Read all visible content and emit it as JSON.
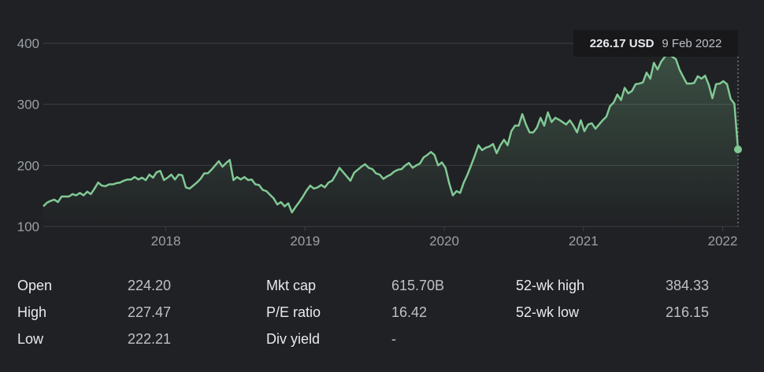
{
  "chart_data": {
    "type": "area",
    "title": "",
    "xlabel": "",
    "ylabel": "",
    "start_year": 2017.12,
    "end_year": 2022.11,
    "ylim": [
      100,
      400
    ],
    "yticks": [
      100,
      200,
      300,
      400
    ],
    "xticks": [
      2018,
      2019,
      2020,
      2021,
      2022
    ],
    "grid": true,
    "line_color": "#81c995",
    "values": [
      133,
      139,
      142,
      144,
      140,
      149,
      149,
      149,
      153,
      151,
      155,
      151,
      157,
      153,
      162,
      172,
      167,
      166,
      169,
      169,
      171,
      172,
      175,
      177,
      177,
      181,
      177,
      180,
      176,
      185,
      180,
      189,
      191,
      176,
      180,
      185,
      177,
      185,
      184,
      164,
      162,
      167,
      172,
      178,
      187,
      187,
      193,
      200,
      207,
      198,
      204,
      209,
      176,
      181,
      177,
      181,
      176,
      177,
      169,
      168,
      160,
      158,
      152,
      146,
      136,
      140,
      133,
      138,
      123,
      132,
      140,
      149,
      159,
      167,
      162,
      164,
      168,
      164,
      172,
      175,
      185,
      196,
      189,
      182,
      175,
      188,
      193,
      198,
      202,
      196,
      194,
      187,
      185,
      178,
      182,
      185,
      190,
      193,
      194,
      200,
      204,
      196,
      200,
      203,
      213,
      217,
      222,
      217,
      200,
      205,
      196,
      171,
      151,
      158,
      155,
      172,
      185,
      200,
      216,
      233,
      225,
      229,
      231,
      235,
      220,
      233,
      242,
      233,
      256,
      265,
      265,
      284,
      267,
      254,
      254,
      262,
      278,
      265,
      287,
      271,
      278,
      275,
      271,
      267,
      274,
      265,
      254,
      274,
      256,
      267,
      269,
      260,
      267,
      274,
      280,
      297,
      303,
      316,
      307,
      327,
      318,
      322,
      333,
      334,
      336,
      352,
      342,
      368,
      357,
      370,
      378,
      384,
      378,
      374,
      357,
      345,
      334,
      334,
      335,
      346,
      342,
      347,
      332,
      310,
      333,
      334,
      338,
      333,
      309,
      301,
      226.17
    ],
    "tooltip": {
      "price": "226.17 USD",
      "date": "9 Feb 2022"
    }
  },
  "stats": [
    {
      "label": "Open",
      "value": "224.20"
    },
    {
      "label": "High",
      "value": "227.47"
    },
    {
      "label": "Low",
      "value": "222.21"
    },
    {
      "label": "Mkt cap",
      "value": "615.70B"
    },
    {
      "label": "P/E ratio",
      "value": "16.42"
    },
    {
      "label": "Div yield",
      "value": "-"
    },
    {
      "label": "52-wk high",
      "value": "384.33"
    },
    {
      "label": "52-wk low",
      "value": "216.15"
    }
  ]
}
